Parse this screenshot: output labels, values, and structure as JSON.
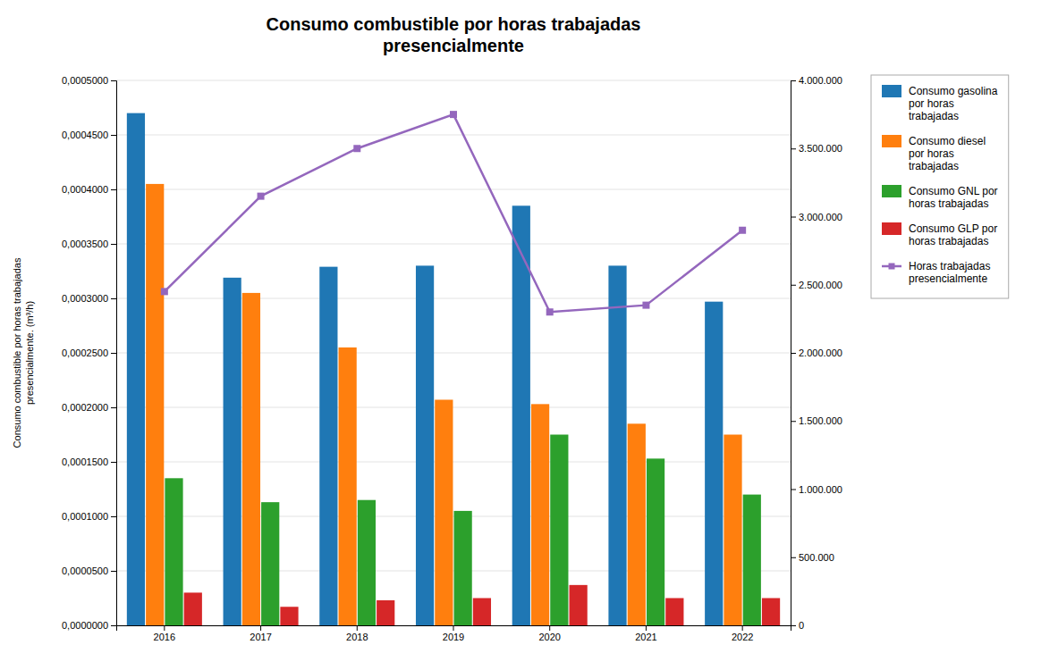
{
  "chart_data": {
    "type": "bar",
    "title": "Consumo combustible por horas trabajadas\npresencialmente",
    "ylabel": "Consumo combustible por horas trabajadas\npresencialmente. (m³/h)",
    "categories": [
      2016,
      2017,
      2018,
      2019,
      2020,
      2021,
      2022
    ],
    "series": [
      {
        "name": "Consumo gasolina\npor horas\ntrabajadas",
        "values": [
          0.00047,
          0.000319,
          0.000329,
          0.00033,
          0.000385,
          0.00033,
          0.000297
        ]
      },
      {
        "name": "Consumo diesel\npor horas\ntrabajadas",
        "values": [
          0.000405,
          0.000305,
          0.000255,
          0.000207,
          0.000203,
          0.000185,
          0.000175
        ]
      },
      {
        "name": "Consumo GNL por\nhoras trabajadas",
        "values": [
          0.000135,
          0.000113,
          0.000115,
          0.000105,
          0.000175,
          0.000153,
          0.00012
        ]
      },
      {
        "name": "Consumo GLP por\nhoras trabajadas",
        "values": [
          3e-05,
          1.7e-05,
          2.3e-05,
          2.5e-05,
          3.7e-05,
          2.5e-05,
          2.5e-05
        ]
      },
      {
        "name": "Horas trabajadas\npresencialmente",
        "type": "line",
        "axis": "y2",
        "marker": "square",
        "values": [
          2450000,
          3150000,
          3500000,
          3750000,
          2300000,
          2350000,
          2900000
        ]
      }
    ],
    "ylim": [
      0,
      0.00050001
    ],
    "yticks": [
      {
        "value": 0,
        "label": "0,0000000"
      },
      {
        "value": 5e-05,
        "label": "0,0000500"
      },
      {
        "value": 0.0001,
        "label": "0,0001000"
      },
      {
        "value": 0.00015,
        "label": "0,0001500"
      },
      {
        "value": 0.0002,
        "label": "0,0002000"
      },
      {
        "value": 0.00025,
        "label": "0,0002500"
      },
      {
        "value": 0.0003,
        "label": "0,0003000"
      },
      {
        "value": 0.00035,
        "label": "0,0003500"
      },
      {
        "value": 0.0004,
        "label": "0,0004000"
      },
      {
        "value": 0.00045,
        "label": "0,0004500"
      },
      {
        "value": 0.0005,
        "label": "0,0005000"
      }
    ],
    "y2lim": [
      0,
      4000000
    ],
    "y2ticks": [
      0,
      {
        "value": 500000,
        "label": "500.000"
      },
      {
        "value": 1000000,
        "label": "1.000.000"
      },
      {
        "value": 1500000,
        "label": "1.500.000"
      },
      {
        "value": 2000000,
        "label": "2.000.000"
      },
      {
        "value": 2500000,
        "label": "2.500.000"
      },
      {
        "value": 3000000,
        "label": "3.000.000"
      },
      {
        "value": 3500000,
        "label": "3.500.000"
      },
      {
        "value": 4000000,
        "label": "4.000.000"
      }
    ],
    "grid": true,
    "legend": "right"
  }
}
